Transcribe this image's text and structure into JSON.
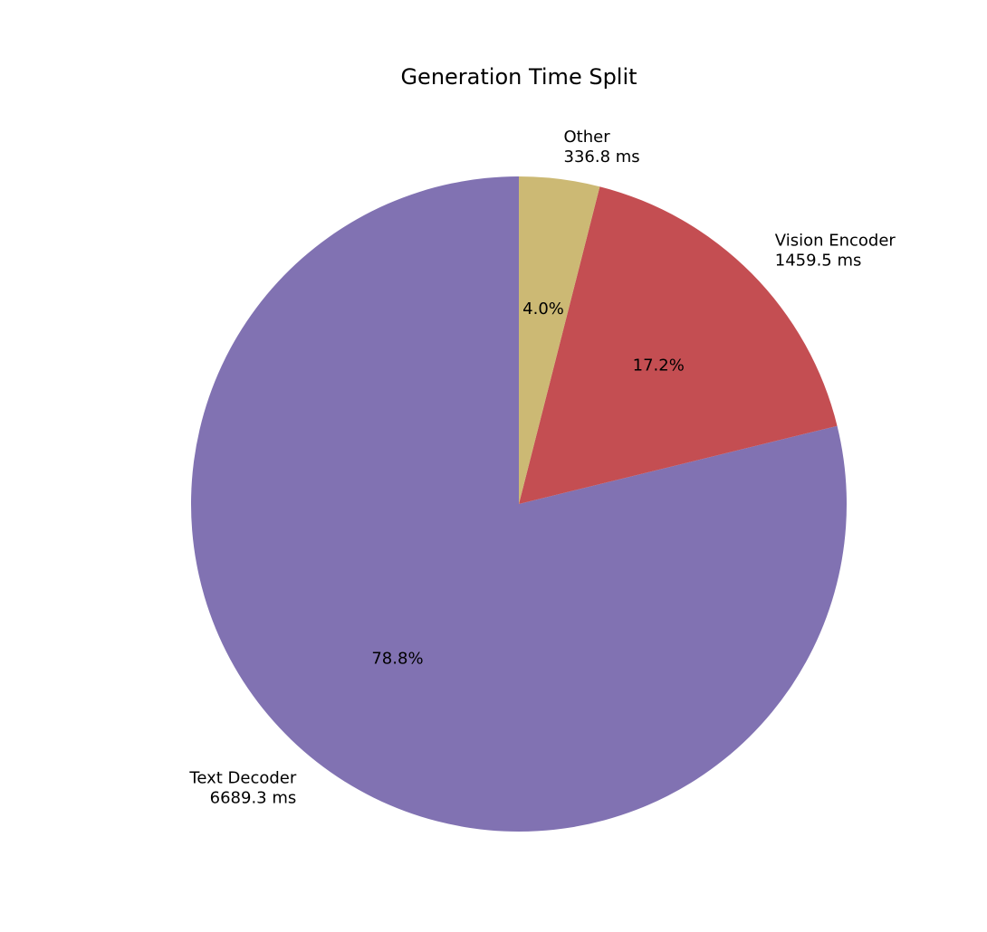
{
  "chart_data": {
    "type": "pie",
    "title": "Generation Time Split",
    "units": "ms",
    "start_angle_deg": 90,
    "direction": "counterclockwise",
    "slices": [
      {
        "label": "Text Decoder",
        "value_text": "6689.3 ms",
        "value": 6689.3,
        "pct_text": "78.8%",
        "color": "#8172b2"
      },
      {
        "label": "Vision Encoder",
        "value_text": "1459.5 ms",
        "value": 1459.5,
        "pct_text": "17.2%",
        "color": "#c44e52"
      },
      {
        "label": "Other",
        "value_text": "336.8 ms",
        "value": 336.8,
        "pct_text": "4.0%",
        "color": "#ccb974"
      }
    ]
  }
}
